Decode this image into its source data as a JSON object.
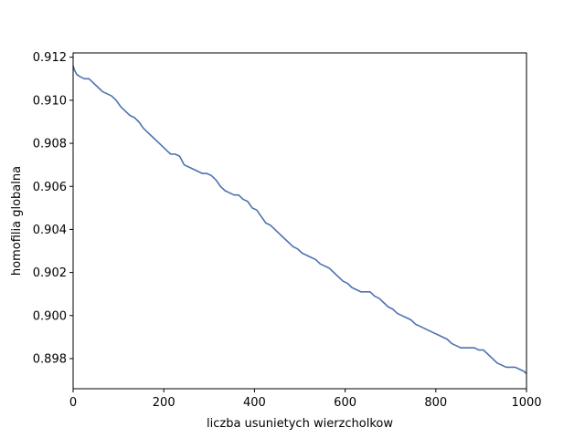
{
  "chart_data": {
    "type": "line",
    "title": "",
    "xlabel": "liczba usunietych wierzcholkow",
    "ylabel": "homofilia globalna",
    "xlim": [
      0,
      1000
    ],
    "ylim": [
      0.8966,
      0.9122
    ],
    "xticks": [
      0,
      200,
      400,
      600,
      800,
      1000
    ],
    "xtick_labels": [
      "0",
      "200",
      "400",
      "600",
      "800",
      "1000"
    ],
    "yticks": [
      0.898,
      0.9,
      0.902,
      0.904,
      0.906,
      0.908,
      0.91,
      0.912
    ],
    "ytick_labels": [
      "0.898",
      "0.900",
      "0.902",
      "0.904",
      "0.906",
      "0.908",
      "0.910",
      "0.912"
    ],
    "grid": false,
    "legend": "none",
    "line_color": "#4c72b0",
    "series": [
      {
        "x": [
          0,
          3,
          8,
          15,
          25,
          35,
          45,
          55,
          65,
          75,
          85,
          95,
          105,
          115,
          125,
          135,
          145,
          155,
          165,
          175,
          185,
          195,
          205,
          215,
          225,
          235,
          245,
          255,
          265,
          275,
          285,
          295,
          305,
          315,
          325,
          335,
          345,
          355,
          365,
          375,
          385,
          395,
          405,
          415,
          425,
          435,
          445,
          455,
          465,
          475,
          485,
          495,
          505,
          515,
          525,
          535,
          545,
          555,
          565,
          575,
          585,
          595,
          605,
          615,
          625,
          635,
          645,
          655,
          665,
          675,
          685,
          695,
          705,
          715,
          725,
          735,
          745,
          755,
          765,
          775,
          785,
          795,
          805,
          815,
          825,
          835,
          845,
          855,
          865,
          875,
          885,
          895,
          905,
          915,
          925,
          935,
          945,
          955,
          965,
          975,
          985,
          995,
          1000
        ],
        "y": [
          0.9116,
          0.9114,
          0.9112,
          0.9111,
          0.911,
          0.911,
          0.9108,
          0.9106,
          0.9104,
          0.9103,
          0.9102,
          0.91,
          0.9097,
          0.9095,
          0.9093,
          0.9092,
          0.909,
          0.9087,
          0.9085,
          0.9083,
          0.9081,
          0.9079,
          0.9077,
          0.9075,
          0.9075,
          0.9074,
          0.907,
          0.9069,
          0.9068,
          0.9067,
          0.9066,
          0.9066,
          0.9065,
          0.9063,
          0.906,
          0.9058,
          0.9057,
          0.9056,
          0.9056,
          0.9054,
          0.9053,
          0.905,
          0.9049,
          0.9046,
          0.9043,
          0.9042,
          0.904,
          0.9038,
          0.9036,
          0.9034,
          0.9032,
          0.9031,
          0.9029,
          0.9028,
          0.9027,
          0.9026,
          0.9024,
          0.9023,
          0.9022,
          0.902,
          0.9018,
          0.9016,
          0.9015,
          0.9013,
          0.9012,
          0.9011,
          0.9011,
          0.9011,
          0.9009,
          0.9008,
          0.9006,
          0.9004,
          0.9003,
          0.9001,
          0.9,
          0.8999,
          0.8998,
          0.8996,
          0.8995,
          0.8994,
          0.8993,
          0.8992,
          0.8991,
          0.899,
          0.8989,
          0.8987,
          0.8986,
          0.8985,
          0.8985,
          0.8985,
          0.8985,
          0.8984,
          0.8984,
          0.8982,
          0.898,
          0.8978,
          0.8977,
          0.8976,
          0.8976,
          0.8976,
          0.8975,
          0.8974,
          0.8973
        ]
      }
    ]
  }
}
